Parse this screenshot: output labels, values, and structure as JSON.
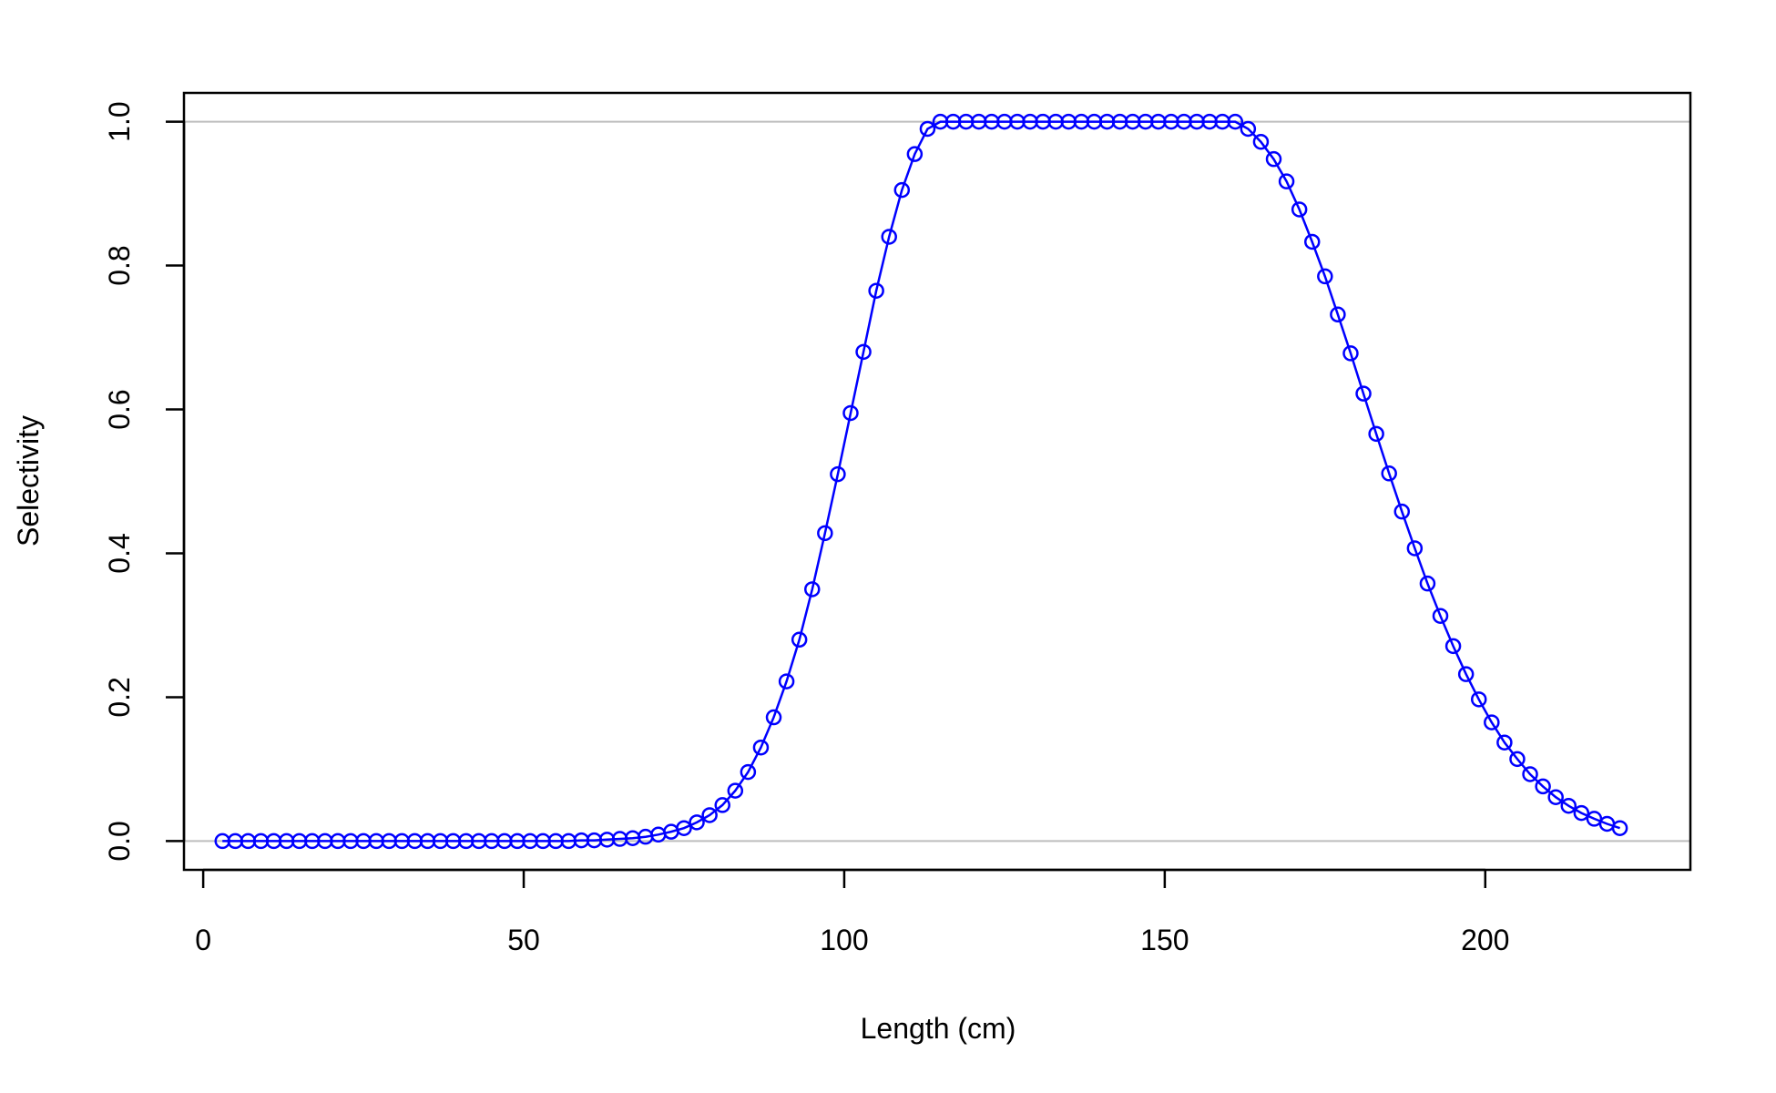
{
  "chart_data": {
    "type": "line",
    "title": "",
    "xlabel": "Length (cm)",
    "ylabel": "Selectivity",
    "xlim": [
      -3,
      232
    ],
    "ylim": [
      -0.04,
      1.04
    ],
    "x_ticks": [
      0,
      50,
      100,
      150,
      200
    ],
    "y_ticks": [
      0.0,
      0.2,
      0.4,
      0.6,
      0.8,
      1.0
    ],
    "x_tick_labels": [
      "0",
      "50",
      "100",
      "150",
      "200"
    ],
    "y_tick_labels": [
      "0.0",
      "0.2",
      "0.4",
      "0.6",
      "0.8",
      "1.0"
    ],
    "reference_lines_y": [
      0,
      1
    ],
    "reference_line_color": "#bebebe",
    "grid": false,
    "legend": "none",
    "marker": "open-circle",
    "series": [
      {
        "color": "#0000ff",
        "x": [
          3,
          5,
          7,
          9,
          11,
          13,
          15,
          17,
          19,
          21,
          23,
          25,
          27,
          29,
          31,
          33,
          35,
          37,
          39,
          41,
          43,
          45,
          47,
          49,
          51,
          53,
          55,
          57,
          59,
          61,
          63,
          65,
          67,
          69,
          71,
          73,
          75,
          77,
          79,
          81,
          83,
          85,
          87,
          89,
          91,
          93,
          95,
          97,
          99,
          101,
          103,
          105,
          107,
          109,
          111,
          113,
          115,
          117,
          119,
          121,
          123,
          125,
          127,
          129,
          131,
          133,
          135,
          137,
          139,
          141,
          143,
          145,
          147,
          149,
          151,
          153,
          155,
          157,
          159,
          161,
          163,
          165,
          167,
          169,
          171,
          173,
          175,
          177,
          179,
          181,
          183,
          185,
          187,
          189,
          191,
          193,
          195,
          197,
          199,
          201,
          203,
          205,
          207,
          209,
          211,
          213,
          215,
          217,
          219,
          221
        ],
        "y": [
          0,
          0,
          0,
          0,
          0,
          0,
          0,
          0,
          0,
          0,
          0,
          0,
          0,
          0,
          0,
          0,
          0,
          0,
          0,
          0,
          0,
          0,
          0,
          0,
          0,
          0,
          0,
          0,
          0.001,
          0.001,
          0.002,
          0.003,
          0.004,
          0.006,
          0.009,
          0.013,
          0.018,
          0.026,
          0.036,
          0.05,
          0.07,
          0.096,
          0.13,
          0.172,
          0.222,
          0.28,
          0.35,
          0.428,
          0.51,
          0.595,
          0.68,
          0.765,
          0.84,
          0.905,
          0.955,
          0.99,
          1,
          1,
          1,
          1,
          1,
          1,
          1,
          1,
          1,
          1,
          1,
          1,
          1,
          1,
          1,
          1,
          1,
          1,
          1,
          1,
          1,
          1,
          1,
          1,
          0.99,
          0.972,
          0.948,
          0.917,
          0.878,
          0.833,
          0.785,
          0.732,
          0.678,
          0.622,
          0.566,
          0.511,
          0.458,
          0.407,
          0.358,
          0.313,
          0.271,
          0.232,
          0.197,
          0.165,
          0.137,
          0.114,
          0.093,
          0.076,
          0.061,
          0.049,
          0.039,
          0.031,
          0.024,
          0.018
        ]
      }
    ]
  }
}
